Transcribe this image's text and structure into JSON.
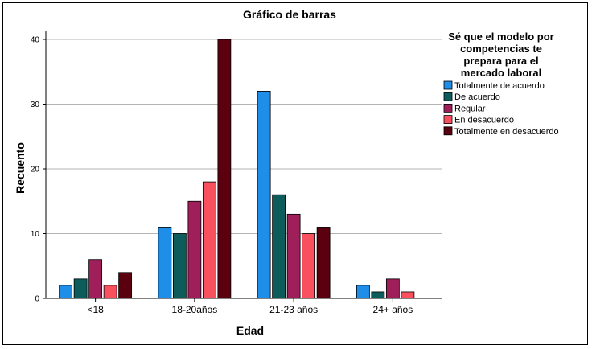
{
  "chart_data": {
    "type": "bar",
    "title": "Gráfico de barras",
    "xlabel": "Edad",
    "ylabel": "Recuento",
    "ylim": [
      0,
      40
    ],
    "yticks": [
      0,
      10,
      20,
      30,
      40
    ],
    "grid": true,
    "categories": [
      "<18",
      "18-20años",
      "21-23 años",
      "24+ años"
    ],
    "legend_title_lines": [
      "Sé que el modelo por",
      "competencias te",
      "prepara para el",
      "mercado laboral"
    ],
    "legend_position": "right",
    "series": [
      {
        "name": "Totalmente de acuerdo",
        "color": "#1F8EE8",
        "values": [
          2,
          11,
          32,
          2
        ]
      },
      {
        "name": "De acuerdo",
        "color": "#0B5C5A",
        "values": [
          3,
          10,
          16,
          1
        ]
      },
      {
        "name": "Regular",
        "color": "#9E1F5A",
        "values": [
          6,
          15,
          13,
          3
        ]
      },
      {
        "name": "En desacuerdo",
        "color": "#F9505F",
        "values": [
          2,
          18,
          10,
          1
        ]
      },
      {
        "name": "Totalmente en desacuerdo",
        "color": "#5A000E",
        "values": [
          4,
          40,
          11,
          0
        ]
      }
    ]
  }
}
